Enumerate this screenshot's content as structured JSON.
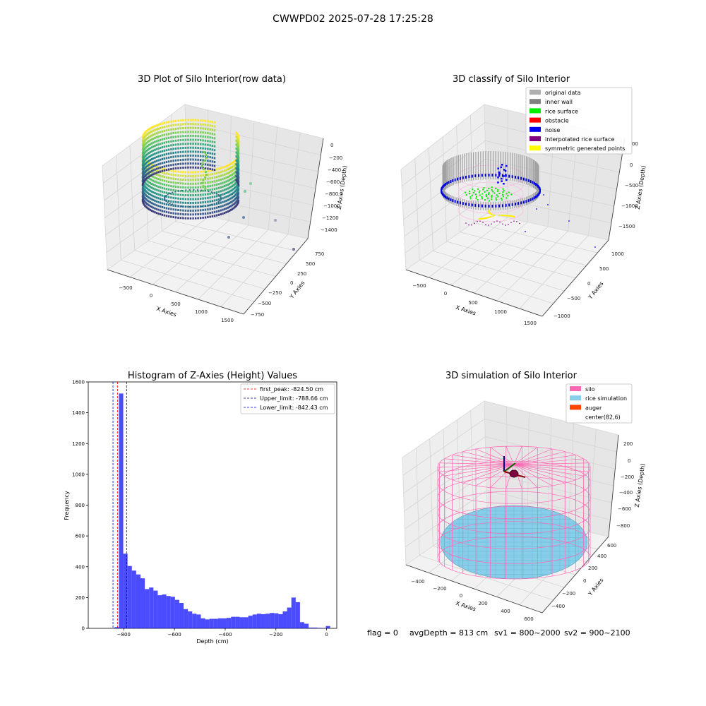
{
  "suptitle": "CWWPD02 2025-07-28 17:25:28",
  "status": {
    "flag": "flag = 0",
    "avg": "avgDepth = 813 cm",
    "sv1": "sv1 = 800~2000",
    "sv2": "sv2 = 900~2100"
  },
  "chart_data": [
    {
      "type": "scatter3d",
      "title": "3D Plot of Silo Interior(row data)",
      "xlabel": "X Axies",
      "ylabel": "Y Axies",
      "zlabel": "Z Axies (Depth)",
      "xticks": [
        "−500",
        "0",
        "500",
        "1000",
        "1500"
      ],
      "yticks": [
        "−750",
        "−500",
        "−250",
        "0",
        "250",
        "500",
        "750"
      ],
      "zticks": [
        "0",
        "−200",
        "−400",
        "−600",
        "−800",
        "−1000",
        "−1200",
        "−1400"
      ],
      "colormap": "viridis"
    },
    {
      "type": "scatter3d",
      "title": "3D classify of Silo Interior",
      "xlabel": "X Axies",
      "ylabel": "Y Axies",
      "zlabel": "Z Axies (Depth)",
      "xticks": [
        "−500",
        "0",
        "500",
        "1000",
        "1500"
      ],
      "yticks": [
        "−1000",
        "−500",
        "0",
        "500",
        "1000"
      ],
      "zticks": [
        "0",
        "−500",
        "−1000",
        "−1500"
      ],
      "zticks_partial": [
        "00"
      ],
      "legend": [
        {
          "label": "original data",
          "color": "#b0b0b0"
        },
        {
          "label": "inner wall",
          "color": "#808080"
        },
        {
          "label": "rice surface",
          "color": "#00ee00"
        },
        {
          "label": "obstacle",
          "color": "#ff0000"
        },
        {
          "label": "noise",
          "color": "#0000ee"
        },
        {
          "label": "interpolated rice surface",
          "color": "#800080"
        },
        {
          "label": "symmetric generated points",
          "color": "#ffff00"
        }
      ]
    },
    {
      "type": "bar",
      "title": "Histogram of Z-Axies (Height) Values",
      "xlabel": "Depth (cm)",
      "ylabel": "Frequency",
      "xlim": [
        -940,
        40
      ],
      "ylim": [
        0,
        1600
      ],
      "xticks": [
        -800,
        -600,
        -400,
        -200,
        0
      ],
      "xtick_labels": [
        "−800",
        "−600",
        "−400",
        "−200",
        "0"
      ],
      "yticks": [
        0,
        200,
        400,
        600,
        800,
        1000,
        1200,
        1400,
        1600
      ],
      "bin_width": 17,
      "bins": [
        {
          "x": -836,
          "v": 8
        },
        {
          "x": -819,
          "v": 1525
        },
        {
          "x": -802,
          "v": 485
        },
        {
          "x": -785,
          "v": 405
        },
        {
          "x": -768,
          "v": 375
        },
        {
          "x": -751,
          "v": 350
        },
        {
          "x": -734,
          "v": 325
        },
        {
          "x": -717,
          "v": 255
        },
        {
          "x": -700,
          "v": 265
        },
        {
          "x": -683,
          "v": 245
        },
        {
          "x": -666,
          "v": 215
        },
        {
          "x": -649,
          "v": 220
        },
        {
          "x": -632,
          "v": 210
        },
        {
          "x": -615,
          "v": 205
        },
        {
          "x": -598,
          "v": 185
        },
        {
          "x": -581,
          "v": 165
        },
        {
          "x": -564,
          "v": 125
        },
        {
          "x": -547,
          "v": 110
        },
        {
          "x": -530,
          "v": 95
        },
        {
          "x": -513,
          "v": 90
        },
        {
          "x": -496,
          "v": 65
        },
        {
          "x": -479,
          "v": 58
        },
        {
          "x": -462,
          "v": 62
        },
        {
          "x": -445,
          "v": 62
        },
        {
          "x": -428,
          "v": 65
        },
        {
          "x": -411,
          "v": 65
        },
        {
          "x": -394,
          "v": 68
        },
        {
          "x": -377,
          "v": 75
        },
        {
          "x": -360,
          "v": 75
        },
        {
          "x": -343,
          "v": 72
        },
        {
          "x": -326,
          "v": 72
        },
        {
          "x": -309,
          "v": 82
        },
        {
          "x": -292,
          "v": 90
        },
        {
          "x": -275,
          "v": 95
        },
        {
          "x": -258,
          "v": 92
        },
        {
          "x": -241,
          "v": 95
        },
        {
          "x": -224,
          "v": 100
        },
        {
          "x": -207,
          "v": 98
        },
        {
          "x": -190,
          "v": 92
        },
        {
          "x": -173,
          "v": 110
        },
        {
          "x": -156,
          "v": 135
        },
        {
          "x": -139,
          "v": 200
        },
        {
          "x": -122,
          "v": 170
        },
        {
          "x": -105,
          "v": 40
        },
        {
          "x": -88,
          "v": 30
        },
        {
          "x": -71,
          "v": 5
        },
        {
          "x": -54,
          "v": 5
        },
        {
          "x": -37,
          "v": 3
        },
        {
          "x": -20,
          "v": 2
        },
        {
          "x": -3,
          "v": 15
        }
      ],
      "vlines": [
        {
          "x": -824.5,
          "color": "#ff0000",
          "label": "first_peak: -824.50 cm"
        },
        {
          "x": -788.66,
          "color": "#000080",
          "label": "Upper_limit: -788.66 cm"
        },
        {
          "x": -842.43,
          "color": "#0000ff",
          "label": "Lower_limit: -842.43 cm"
        }
      ],
      "bar_color": "#0000ff"
    },
    {
      "type": "surface3d",
      "title": "3D simulation of Silo Interior",
      "xlabel": "X Axies",
      "ylabel": "Y Axies",
      "zlabel": "Z Axies (Depth)",
      "xticks": [
        "−400",
        "−200",
        "0",
        "200",
        "400",
        "600"
      ],
      "yticks": [
        "−400",
        "−200",
        "0",
        "200",
        "400",
        "600"
      ],
      "zticks": [
        "200",
        "0",
        "−200",
        "−400",
        "−600",
        "−800"
      ],
      "legend": [
        {
          "label": "silo",
          "color": "#ff69b4"
        },
        {
          "label": "rice simulation",
          "color": "#87ceeb"
        },
        {
          "label": "auger",
          "color": "#ff4500"
        },
        {
          "label": "center(82,6)",
          "color": "#ffffff"
        }
      ]
    }
  ]
}
